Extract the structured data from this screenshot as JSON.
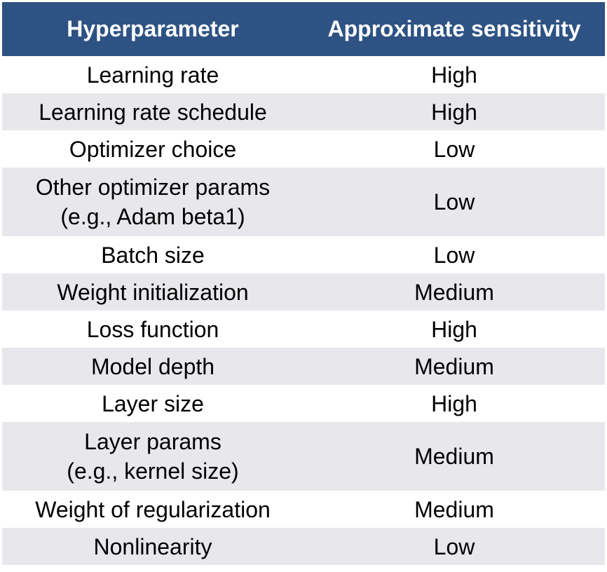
{
  "table": {
    "headers": [
      "Hyperparameter",
      "Approximate sensitivity"
    ],
    "rows": [
      {
        "param": [
          "Learning rate"
        ],
        "sensitivity": "High"
      },
      {
        "param": [
          "Learning rate schedule"
        ],
        "sensitivity": "High"
      },
      {
        "param": [
          "Optimizer choice"
        ],
        "sensitivity": "Low"
      },
      {
        "param": [
          "Other optimizer params",
          "(e.g., Adam beta1)"
        ],
        "sensitivity": "Low"
      },
      {
        "param": [
          "Batch size"
        ],
        "sensitivity": "Low"
      },
      {
        "param": [
          "Weight initialization"
        ],
        "sensitivity": "Medium"
      },
      {
        "param": [
          "Loss function"
        ],
        "sensitivity": "High"
      },
      {
        "param": [
          "Model depth"
        ],
        "sensitivity": "Medium"
      },
      {
        "param": [
          "Layer size"
        ],
        "sensitivity": "High"
      },
      {
        "param": [
          "Layer params",
          "(e.g., kernel size)"
        ],
        "sensitivity": "Medium"
      },
      {
        "param": [
          "Weight of regularization"
        ],
        "sensitivity": "Medium"
      },
      {
        "param": [
          "Nonlinearity"
        ],
        "sensitivity": "Low"
      }
    ]
  },
  "colors": {
    "header_bg": "#2d5283",
    "header_text": "#ffffff",
    "stripe": "#e8e8ec"
  }
}
